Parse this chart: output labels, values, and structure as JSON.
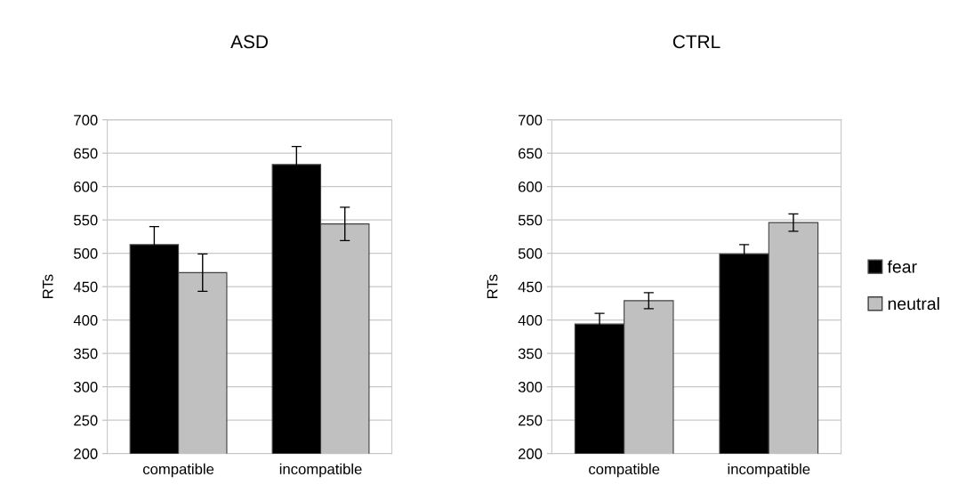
{
  "chart_data": [
    {
      "type": "bar",
      "title": "ASD",
      "ylabel": "RTs",
      "categories": [
        "compatible",
        "incompatible"
      ],
      "series": [
        {
          "color": "#000000",
          "values": [
            513,
            633
          ],
          "errors": [
            27,
            27
          ]
        },
        {
          "color": "#c0c0c0",
          "values": [
            471,
            544
          ],
          "errors": [
            28,
            25
          ]
        }
      ],
      "ylim": [
        200,
        700
      ],
      "yticks": [
        200,
        250,
        300,
        350,
        400,
        450,
        500,
        550,
        600,
        650,
        700
      ],
      "grid": "y",
      "legend": false
    },
    {
      "type": "bar",
      "title": "CTRL",
      "ylabel": "RTs",
      "categories": [
        "compatible",
        "incompatible"
      ],
      "series": [
        {
          "name": "fear",
          "color": "#000000",
          "values": [
            394,
            499
          ],
          "errors": [
            16,
            14
          ]
        },
        {
          "name": "neutral",
          "color": "#c0c0c0",
          "values": [
            429,
            546
          ],
          "errors": [
            12,
            13
          ]
        }
      ],
      "ylim": [
        200,
        700
      ],
      "yticks": [
        200,
        250,
        300,
        350,
        400,
        450,
        500,
        550,
        600,
        650,
        700
      ],
      "grid": "y",
      "legend": "right"
    }
  ]
}
